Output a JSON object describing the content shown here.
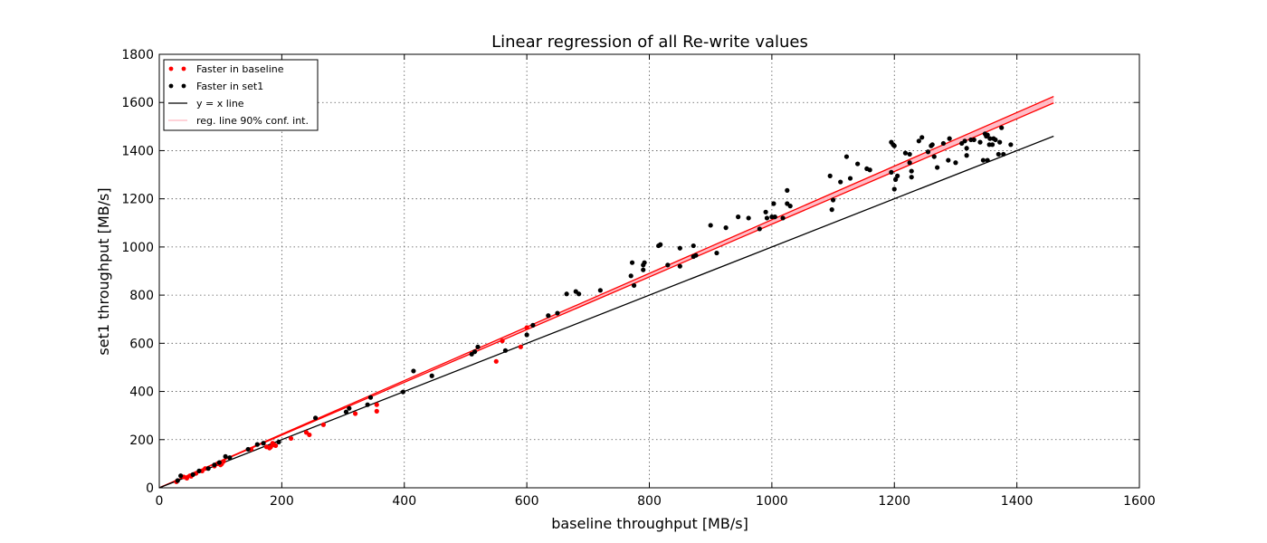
{
  "chart_data": {
    "type": "scatter",
    "title": "Linear regression of all Re-write values",
    "xlabel": "baseline throughput [MB/s]",
    "ylabel": "set1 throughput [MB/s]",
    "xlim": [
      0,
      1600
    ],
    "ylim": [
      0,
      1800
    ],
    "xticks": [
      0,
      200,
      400,
      600,
      800,
      1000,
      1200,
      1400,
      1600
    ],
    "yticks": [
      0,
      200,
      400,
      600,
      800,
      1000,
      1200,
      1400,
      1600,
      1800
    ],
    "grid": true,
    "legend_position": "top-left",
    "colors": {
      "baseline": "#ff0000",
      "set1": "#000000",
      "yx": "#000000",
      "reg": "#ff0000",
      "band": "#ffb6c1"
    },
    "legend": [
      {
        "label": "Faster in baseline",
        "kind": "point",
        "color": "#ff0000"
      },
      {
        "label": "Faster in set1",
        "kind": "point",
        "color": "#000000"
      },
      {
        "label": "y = x line",
        "kind": "line",
        "color": "#000000"
      },
      {
        "label": "reg. line 90% conf. int.",
        "kind": "line",
        "color": "#ffb6c1"
      }
    ],
    "yx_line": {
      "x": [
        0,
        1460
      ],
      "y": [
        0,
        1460
      ]
    },
    "reg_band": {
      "x": [
        0,
        1460
      ],
      "lower": [
        0,
        1598
      ],
      "upper": [
        0,
        1625
      ]
    },
    "series": [
      {
        "name": "Faster in baseline",
        "color": "#ff0000",
        "points": [
          [
            28,
            25
          ],
          [
            40,
            45
          ],
          [
            45,
            40
          ],
          [
            50,
            50
          ],
          [
            52,
            48
          ],
          [
            60,
            60
          ],
          [
            70,
            70
          ],
          [
            75,
            80
          ],
          [
            90,
            90
          ],
          [
            95,
            100
          ],
          [
            100,
            95
          ],
          [
            102,
            100
          ],
          [
            105,
            110
          ],
          [
            150,
            160
          ],
          [
            175,
            170
          ],
          [
            180,
            165
          ],
          [
            182,
            170
          ],
          [
            185,
            185
          ],
          [
            188,
            178
          ],
          [
            190,
            175
          ],
          [
            215,
            205
          ],
          [
            240,
            230
          ],
          [
            245,
            220
          ],
          [
            268,
            262
          ],
          [
            320,
            308
          ],
          [
            355,
            345
          ],
          [
            355,
            318
          ],
          [
            550,
            525
          ],
          [
            560,
            610
          ],
          [
            590,
            585
          ],
          [
            600,
            665
          ]
        ]
      },
      {
        "name": "Faster in set1",
        "color": "#000000",
        "points": [
          [
            30,
            30
          ],
          [
            35,
            50
          ],
          [
            55,
            55
          ],
          [
            65,
            70
          ],
          [
            80,
            80
          ],
          [
            90,
            95
          ],
          [
            98,
            105
          ],
          [
            108,
            130
          ],
          [
            115,
            125
          ],
          [
            145,
            160
          ],
          [
            160,
            180
          ],
          [
            170,
            185
          ],
          [
            195,
            190
          ],
          [
            255,
            290
          ],
          [
            305,
            315
          ],
          [
            310,
            330
          ],
          [
            340,
            345
          ],
          [
            345,
            375
          ],
          [
            398,
            398
          ],
          [
            415,
            485
          ],
          [
            445,
            465
          ],
          [
            510,
            555
          ],
          [
            515,
            565
          ],
          [
            520,
            585
          ],
          [
            565,
            570
          ],
          [
            600,
            635
          ],
          [
            610,
            675
          ],
          [
            635,
            715
          ],
          [
            650,
            725
          ],
          [
            665,
            805
          ],
          [
            680,
            815
          ],
          [
            685,
            805
          ],
          [
            720,
            820
          ],
          [
            770,
            880
          ],
          [
            772,
            935
          ],
          [
            775,
            840
          ],
          [
            790,
            905
          ],
          [
            790,
            925
          ],
          [
            792,
            935
          ],
          [
            815,
            1005
          ],
          [
            818,
            1010
          ],
          [
            830,
            925
          ],
          [
            850,
            995
          ],
          [
            850,
            920
          ],
          [
            872,
            1005
          ],
          [
            872,
            960
          ],
          [
            876,
            965
          ],
          [
            900,
            1090
          ],
          [
            910,
            975
          ],
          [
            925,
            1080
          ],
          [
            945,
            1125
          ],
          [
            962,
            1120
          ],
          [
            980,
            1075
          ],
          [
            990,
            1145
          ],
          [
            992,
            1120
          ],
          [
            1000,
            1125
          ],
          [
            1003,
            1180
          ],
          [
            1005,
            1125
          ],
          [
            1018,
            1120
          ],
          [
            1025,
            1180
          ],
          [
            1025,
            1235
          ],
          [
            1030,
            1170
          ],
          [
            1095,
            1295
          ],
          [
            1098,
            1155
          ],
          [
            1100,
            1195
          ],
          [
            1112,
            1270
          ],
          [
            1122,
            1375
          ],
          [
            1128,
            1285
          ],
          [
            1140,
            1345
          ],
          [
            1155,
            1325
          ],
          [
            1160,
            1320
          ],
          [
            1195,
            1310
          ],
          [
            1195,
            1435
          ],
          [
            1198,
            1425
          ],
          [
            1200,
            1420
          ],
          [
            1200,
            1240
          ],
          [
            1202,
            1280
          ],
          [
            1205,
            1295
          ],
          [
            1218,
            1390
          ],
          [
            1225,
            1385
          ],
          [
            1225,
            1350
          ],
          [
            1228,
            1290
          ],
          [
            1228,
            1315
          ],
          [
            1240,
            1440
          ],
          [
            1245,
            1455
          ],
          [
            1255,
            1395
          ],
          [
            1260,
            1420
          ],
          [
            1262,
            1425
          ],
          [
            1265,
            1375
          ],
          [
            1270,
            1330
          ],
          [
            1280,
            1430
          ],
          [
            1288,
            1360
          ],
          [
            1290,
            1450
          ],
          [
            1300,
            1350
          ],
          [
            1310,
            1430
          ],
          [
            1315,
            1440
          ],
          [
            1318,
            1410
          ],
          [
            1318,
            1380
          ],
          [
            1325,
            1445
          ],
          [
            1330,
            1445
          ],
          [
            1340,
            1435
          ],
          [
            1345,
            1360
          ],
          [
            1348,
            1470
          ],
          [
            1350,
            1460
          ],
          [
            1352,
            1465
          ],
          [
            1352,
            1360
          ],
          [
            1355,
            1425
          ],
          [
            1356,
            1450
          ],
          [
            1360,
            1425
          ],
          [
            1362,
            1450
          ],
          [
            1365,
            1445
          ],
          [
            1370,
            1385
          ],
          [
            1372,
            1435
          ],
          [
            1375,
            1495
          ],
          [
            1378,
            1385
          ],
          [
            1390,
            1425
          ]
        ]
      }
    ]
  }
}
